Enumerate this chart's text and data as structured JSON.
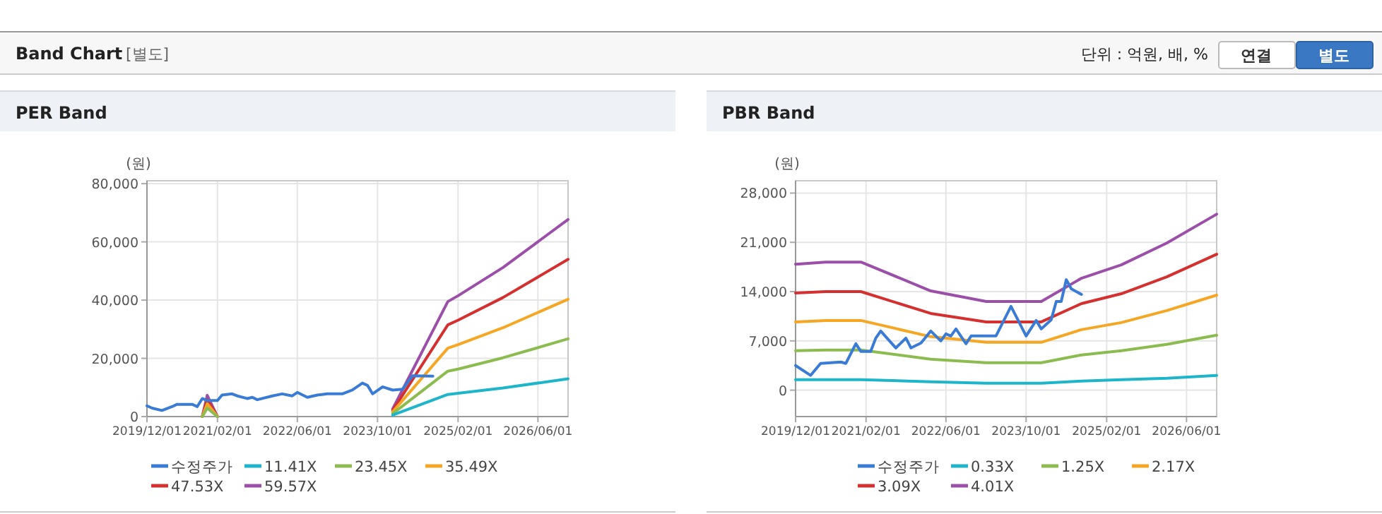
{
  "chart_data": [
    {
      "type": "other",
      "title": "Band Chart",
      "subtitle": "[별도]",
      "annotations": [
        "단위 : 억원, 배, %",
        "연결",
        "별도"
      ]
    },
    {
      "type": "line",
      "title": "PER Band",
      "ylabel": "(원)",
      "xlim": [
        "2019-12-01",
        "2026-12-01"
      ],
      "ylim": [
        0,
        81000
      ],
      "xticks": [
        {
          "value": "2019-12-01",
          "label": "2019/12/01"
        },
        {
          "value": "2021-02-01",
          "label": "2021/02/01"
        },
        {
          "value": "2022-06-01",
          "label": "2022/06/01"
        },
        {
          "value": "2023-10-01",
          "label": "2023/10/01"
        },
        {
          "value": "2025-02-01",
          "label": "2025/02/01"
        },
        {
          "value": "2026-06-01",
          "label": "2026/06/01"
        }
      ],
      "yticks": [
        0,
        {
          "value": 20000,
          "label": "20,000"
        },
        {
          "value": 40000,
          "label": "40,000"
        },
        {
          "value": 60000,
          "label": "60,000"
        },
        {
          "value": 80000,
          "label": "80,000"
        }
      ],
      "grid": true,
      "legend": "bottom",
      "marker": "none",
      "line_style": "solid",
      "series": [
        {
          "name": "수정주가",
          "color": "#3a7bd5",
          "x": [
            "2019-12",
            "2020-01",
            "2020-03",
            "2020-05",
            "2020-06",
            "2020-09",
            "2020-10",
            "2020-11",
            "2020-12",
            "2021-02",
            "2021-03",
            "2021-05",
            "2021-06",
            "2021-08",
            "2021-09",
            "2021-10",
            "2022-01",
            "2022-03",
            "2022-05",
            "2022-06",
            "2022-08",
            "2022-10",
            "2022-12",
            "2023-03",
            "2023-05",
            "2023-07",
            "2023-08",
            "2023-09",
            "2023-11",
            "2024-01",
            "2024-03",
            "2024-05",
            "2024-09"
          ],
          "values": [
            3700,
            2900,
            2100,
            3400,
            4200,
            4200,
            3400,
            6200,
            5500,
            5500,
            7400,
            7800,
            7100,
            6200,
            6600,
            5800,
            7100,
            7800,
            7100,
            8300,
            6600,
            7400,
            7800,
            7800,
            9100,
            11500,
            10700,
            7800,
            10200,
            9100,
            9400,
            14000,
            13900
          ]
        },
        {
          "name": "11.41X",
          "color": "#1cb5c9",
          "x": [
            "2024-01",
            "2024-12",
            "2025-02",
            "2025-11",
            "2026-12"
          ],
          "values": [
            500,
            7600,
            8000,
            9800,
            13000
          ]
        },
        {
          "name": "23.45X",
          "color": "#8cbb4f",
          "x": [
            "2020-11",
            "2020-12",
            "2021-02",
            "2022-06",
            "2024-01",
            "2024-12",
            "2025-02",
            "2025-11",
            "2026-12"
          ],
          "values": [
            0,
            2900,
            0,
            null,
            1000,
            15600,
            16300,
            20200,
            26700
          ]
        },
        {
          "name": "35.49X",
          "color": "#f5a623",
          "x": [
            "2020-11",
            "2020-12",
            "2021-02",
            "2022-06",
            "2024-01",
            "2024-12",
            "2025-02",
            "2025-11",
            "2026-12"
          ],
          "values": [
            0,
            4400,
            0,
            null,
            1600,
            23500,
            24700,
            30500,
            40300
          ]
        },
        {
          "name": "47.53X",
          "color": "#d43030",
          "x": [
            "2020-11",
            "2020-12",
            "2021-02",
            "2022-06",
            "2024-01",
            "2024-12",
            "2025-02",
            "2025-11",
            "2026-12"
          ],
          "values": [
            0,
            5800,
            0,
            null,
            2100,
            31500,
            33100,
            40900,
            54000
          ]
        },
        {
          "name": "59.57X",
          "color": "#9b4fa8",
          "x": [
            "2020-11",
            "2020-12",
            "2021-02",
            "2022-06",
            "2024-01",
            "2024-12",
            "2025-02",
            "2025-11",
            "2026-12"
          ],
          "values": [
            0,
            7300,
            0,
            null,
            2600,
            39500,
            41500,
            51200,
            67700
          ]
        }
      ]
    },
    {
      "type": "line",
      "title": "PBR Band",
      "ylabel": "(원)",
      "xlim": [
        "2019-12-01",
        "2026-12-01"
      ],
      "ylim": [
        -3750,
        29750
      ],
      "xticks": [
        {
          "value": "2019-12-01",
          "label": "2019/12/01"
        },
        {
          "value": "2021-02-01",
          "label": "2021/02/01"
        },
        {
          "value": "2022-06-01",
          "label": "2022/06/01"
        },
        {
          "value": "2023-10-01",
          "label": "2023/10/01"
        },
        {
          "value": "2025-02-01",
          "label": "2025/02/01"
        },
        {
          "value": "2026-06-01",
          "label": "2026/06/01"
        }
      ],
      "yticks": [
        0,
        {
          "value": 7000,
          "label": "7,000"
        },
        {
          "value": 14000,
          "label": "14,000"
        },
        {
          "value": 21000,
          "label": "21,000"
        },
        {
          "value": 28000,
          "label": "28,000"
        }
      ],
      "grid": true,
      "legend": "bottom",
      "marker": "none",
      "line_style": "solid",
      "series": [
        {
          "name": "수정주가",
          "color": "#3a7bd5",
          "x": [
            "2019-12",
            "2020-03",
            "2020-05",
            "2020-09",
            "2020-10",
            "2020-12",
            "2021-01",
            "2021-03",
            "2021-04",
            "2021-05",
            "2021-08",
            "2021-10",
            "2021-11",
            "2022-01",
            "2022-03",
            "2022-05",
            "2022-06",
            "2022-07",
            "2022-08",
            "2022-10",
            "2022-11",
            "2023-02",
            "2023-04",
            "2023-07",
            "2023-10",
            "2023-12",
            "2024-01",
            "2024-03",
            "2024-04",
            "2024-05",
            "2024-06",
            "2024-07",
            "2024-09"
          ],
          "values": [
            3500,
            2100,
            3800,
            4000,
            3800,
            6600,
            5500,
            5500,
            7400,
            8400,
            6000,
            7400,
            6000,
            6700,
            8400,
            7000,
            8000,
            7700,
            8700,
            6600,
            7700,
            7700,
            7700,
            11900,
            7700,
            9900,
            8700,
            10000,
            12600,
            12600,
            15700,
            14400,
            13600
          ]
        },
        {
          "name": "0.33X",
          "color": "#1cb5c9",
          "x": [
            "2019-12",
            "2020-06",
            "2021-01",
            "2022-03",
            "2023-02",
            "2024-01",
            "2024-09",
            "2025-05",
            "2026-02",
            "2026-12"
          ],
          "values": [
            1500,
            1500,
            1500,
            1200,
            1000,
            1000,
            1300,
            1500,
            1700,
            2100
          ]
        },
        {
          "name": "1.25X",
          "color": "#8cbb4f",
          "x": [
            "2019-12",
            "2020-06",
            "2021-01",
            "2022-03",
            "2023-02",
            "2024-01",
            "2024-09",
            "2025-05",
            "2026-02",
            "2026-12"
          ],
          "values": [
            5600,
            5700,
            5700,
            4400,
            3900,
            3900,
            5000,
            5600,
            6500,
            7800
          ]
        },
        {
          "name": "2.17X",
          "color": "#f5a623",
          "x": [
            "2019-12",
            "2020-06",
            "2021-01",
            "2022-03",
            "2023-02",
            "2024-01",
            "2024-09",
            "2025-05",
            "2026-02",
            "2026-12"
          ],
          "values": [
            9700,
            9900,
            9900,
            7600,
            6800,
            6800,
            8600,
            9600,
            11300,
            13500
          ]
        },
        {
          "name": "3.09X",
          "color": "#d43030",
          "x": [
            "2019-12",
            "2020-06",
            "2021-01",
            "2022-03",
            "2023-02",
            "2024-01",
            "2024-09",
            "2025-05",
            "2026-02",
            "2026-12"
          ],
          "values": [
            13800,
            14000,
            14000,
            10900,
            9700,
            9700,
            12300,
            13700,
            16100,
            19300
          ]
        },
        {
          "name": "4.01X",
          "color": "#9b4fa8",
          "x": [
            "2019-12",
            "2020-06",
            "2021-01",
            "2022-03",
            "2023-02",
            "2024-01",
            "2024-09",
            "2025-05",
            "2026-02",
            "2026-12"
          ],
          "values": [
            17900,
            18200,
            18200,
            14100,
            12600,
            12600,
            15900,
            17800,
            20900,
            25000
          ]
        }
      ]
    }
  ]
}
